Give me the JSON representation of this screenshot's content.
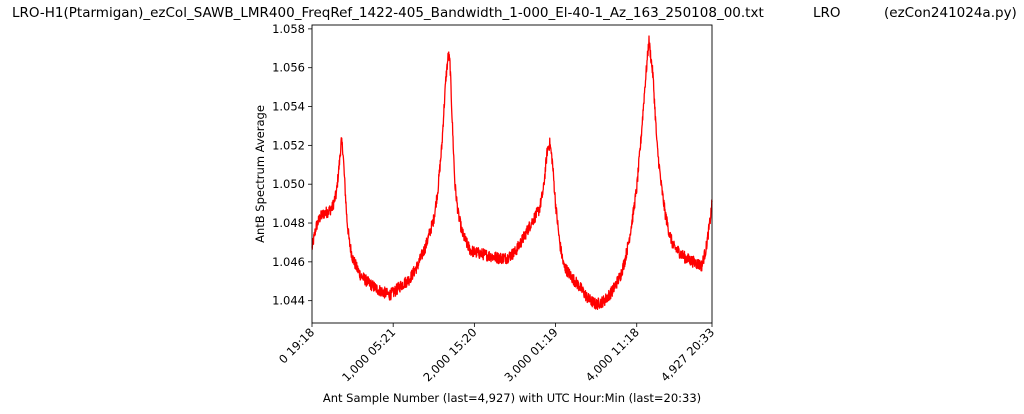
{
  "header": {
    "filename": "LRO-H1(Ptarmigan)_ezCol_SAWB_LMR400_FreqRef_1422-405_Bandwidth_1-000_El-40-1_Az_163_250108_00.txt",
    "site": "LRO",
    "program": "(ezCon241024a.py)"
  },
  "chart_data": {
    "type": "line",
    "title": "LRO-H1(Ptarmigan)_ezCol_SAWB_LMR400_FreqRef_1422-405_Bandwidth_1-000_El-40-1_Az_163_250108_00.txt",
    "xlabel": "Ant Sample Number (last=4,927) with UTC Hour:Min (last=20:33)",
    "ylabel": "AntB Spectrum Average",
    "xlim": [
      0,
      4927
    ],
    "ylim": [
      1.04285,
      1.0582
    ],
    "x_ticks": [
      0,
      1000,
      2000,
      3000,
      4000,
      4927
    ],
    "x_tick_labels": [
      "0  19:18",
      "1,000  05:21",
      "2,000  15:20",
      "3,000  01:19",
      "4,000  11:18",
      "4,927  20:33"
    ],
    "y_ticks": [
      1.044,
      1.046,
      1.048,
      1.05,
      1.052,
      1.054,
      1.056,
      1.058
    ],
    "y_tick_labels": [
      "1.044",
      "1.046",
      "1.048",
      "1.050",
      "1.052",
      "1.054",
      "1.056",
      "1.058"
    ],
    "grid": false,
    "series": [
      {
        "color": "#ff0000",
        "noise": 0.0003,
        "x": [
          0,
          50,
          100,
          150,
          200,
          250,
          300,
          340,
          360,
          380,
          400,
          430,
          460,
          500,
          550,
          600,
          700,
          800,
          900,
          950,
          1000,
          1050,
          1100,
          1200,
          1300,
          1400,
          1500,
          1550,
          1600,
          1620,
          1650,
          1680,
          1700,
          1730,
          1760,
          1800,
          1850,
          1900,
          1950,
          2000,
          2100,
          2200,
          2300,
          2400,
          2500,
          2600,
          2700,
          2800,
          2850,
          2880,
          2900,
          2930,
          2960,
          3000,
          3050,
          3100,
          3200,
          3300,
          3400,
          3500,
          3600,
          3700,
          3800,
          3850,
          3900,
          3950,
          4000,
          4050,
          4100,
          4150,
          4200,
          4250,
          4300,
          4350,
          4400,
          4450,
          4500,
          4600,
          4700,
          4800,
          4850,
          4900,
          4927
        ],
        "y": [
          1.0467,
          1.0478,
          1.0483,
          1.0485,
          1.0486,
          1.0488,
          1.0495,
          1.0512,
          1.0522,
          1.0518,
          1.0503,
          1.0482,
          1.047,
          1.0462,
          1.0457,
          1.0453,
          1.0449,
          1.0446,
          1.0444,
          1.0443,
          1.0444,
          1.0446,
          1.0448,
          1.0451,
          1.0458,
          1.0468,
          1.0482,
          1.0497,
          1.052,
          1.0535,
          1.0555,
          1.0567,
          1.0562,
          1.053,
          1.05,
          1.0485,
          1.0475,
          1.047,
          1.0466,
          1.0465,
          1.0464,
          1.0463,
          1.0462,
          1.0462,
          1.0465,
          1.0472,
          1.048,
          1.0487,
          1.0497,
          1.051,
          1.0518,
          1.0521,
          1.0512,
          1.049,
          1.047,
          1.0458,
          1.0452,
          1.0447,
          1.0441,
          1.0438,
          1.044,
          1.0445,
          1.0453,
          1.046,
          1.047,
          1.0483,
          1.0498,
          1.0522,
          1.055,
          1.0574,
          1.0556,
          1.052,
          1.05,
          1.0485,
          1.0475,
          1.0468,
          1.0466,
          1.0462,
          1.046,
          1.0458,
          1.0466,
          1.048,
          1.049
        ]
      }
    ]
  }
}
